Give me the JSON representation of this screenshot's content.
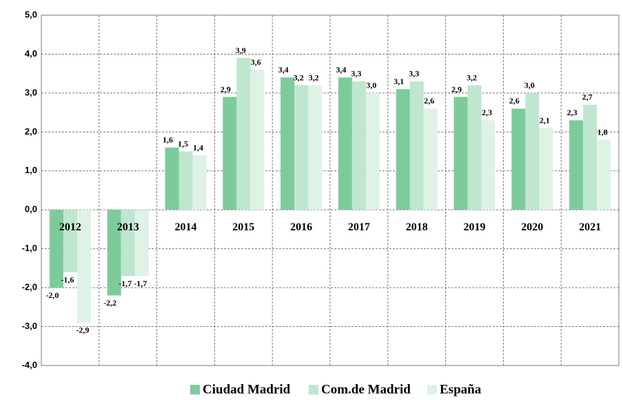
{
  "chart_data": {
    "type": "bar",
    "categories": [
      "2012",
      "2013",
      "2014",
      "2015",
      "2016",
      "2017",
      "2018",
      "2019",
      "2020",
      "2021"
    ],
    "series": [
      {
        "name": "Ciudad Madrid",
        "color": "#7dcb9a",
        "values": [
          -2.0,
          -2.2,
          1.6,
          2.9,
          3.4,
          3.4,
          3.1,
          2.9,
          2.6,
          2.3
        ],
        "value_labels": [
          "-2,0",
          "-2,2",
          "1,6",
          "2,9",
          "3,4",
          "3,4",
          "3,1",
          "2,9",
          "2,6",
          "2,3"
        ]
      },
      {
        "name": "Com.de Madrid",
        "color": "#bfe6cf",
        "values": [
          -1.6,
          -1.7,
          1.5,
          3.9,
          3.2,
          3.3,
          3.3,
          3.2,
          3.0,
          2.7
        ],
        "value_labels": [
          "-1,6",
          "-1,7",
          "1,5",
          "3,9",
          "3,2",
          "3,3",
          "3,3",
          "3,2",
          "3,0",
          "2,7"
        ]
      },
      {
        "name": "España",
        "color": "#dff2e6",
        "values": [
          -2.9,
          -1.7,
          1.4,
          3.6,
          3.2,
          3.0,
          2.6,
          2.3,
          2.1,
          1.8
        ],
        "value_labels": [
          "-2,9",
          "-1,7",
          "1,4",
          "3,6",
          "3,2",
          "3,0",
          "2,6",
          "2,3",
          "2,1",
          "1,8"
        ]
      }
    ],
    "ylim": [
      -4,
      5
    ],
    "yticks": [
      {
        "value": -4,
        "label": "-4,0"
      },
      {
        "value": -3,
        "label": "-3,0"
      },
      {
        "value": -2,
        "label": "-2,0"
      },
      {
        "value": -1,
        "label": "-1,0"
      },
      {
        "value": 0,
        "label": "0,0"
      },
      {
        "value": 1,
        "label": "1,0"
      },
      {
        "value": 2,
        "label": "2,0"
      },
      {
        "value": 3,
        "label": "3,0"
      },
      {
        "value": 4,
        "label": "4,0"
      },
      {
        "value": 5,
        "label": "5,0"
      }
    ],
    "grid": true,
    "legend": "bottom"
  }
}
